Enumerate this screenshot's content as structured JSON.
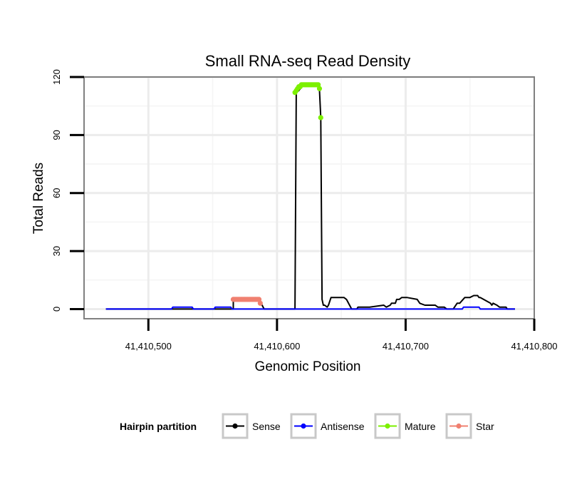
{
  "chart_data": {
    "type": "line",
    "title": "Small RNA-seq Read Density",
    "xlabel": "Genomic Position",
    "ylabel": "Total Reads",
    "xlim": [
      41410450,
      41410800
    ],
    "ylim": [
      -5,
      120
    ],
    "xticks": [
      41410500,
      41410600,
      41410700,
      41410800
    ],
    "xtick_labels": [
      "41,410,500",
      "41,410,600",
      "41,410,700",
      "41,410,800"
    ],
    "yticks": [
      0,
      30,
      60,
      90,
      120
    ],
    "ytick_labels": [
      "0",
      "30",
      "60",
      "90",
      "120"
    ],
    "grid": true,
    "legend": {
      "title": "Hairpin partition",
      "placement": "bottom",
      "entries": [
        {
          "name": "Sense",
          "color": "#000000"
        },
        {
          "name": "Antisense",
          "color": "#0000ff"
        },
        {
          "name": "Mature",
          "color": "#7cf000"
        },
        {
          "name": "Star",
          "color": "#f08070"
        }
      ]
    },
    "series": [
      {
        "name": "Sense",
        "color": "#000000",
        "marker": false,
        "x": [
          41410467,
          41410566,
          41410566,
          41410570,
          41410586,
          41410590,
          41410614,
          41410615,
          41410617,
          41410618,
          41410619,
          41410620,
          41410632,
          41410633,
          41410634,
          41410635,
          41410636,
          41410637,
          41410639,
          41410640,
          41410642,
          41410652,
          41410654,
          41410658,
          41410660,
          41410662,
          41410663,
          41410672,
          41410683,
          41410685,
          41410688,
          41410689,
          41410692,
          41410693,
          41410695,
          41410697,
          41410701,
          41410709,
          41410711,
          41410715,
          41410723,
          41410725,
          41410730,
          41410732,
          41410737,
          41410740,
          41410742,
          41410746,
          41410750,
          41410753,
          41410756,
          41410757,
          41410758,
          41410766,
          41410767,
          41410768,
          41410771,
          41410773,
          41410778,
          41410779,
          41410785
        ],
        "y": [
          0,
          0,
          5,
          5,
          5,
          0,
          0,
          112,
          113,
          114,
          115,
          116,
          116,
          114,
          99,
          5,
          2,
          2,
          1,
          2,
          6,
          6,
          5,
          0,
          0,
          0,
          1,
          1,
          2,
          1,
          2,
          3,
          3,
          5,
          5,
          6,
          6,
          5,
          3,
          2,
          2,
          1,
          1,
          0,
          0,
          3,
          3,
          6,
          6,
          7,
          7,
          6,
          6,
          3,
          2,
          3,
          2,
          1,
          1,
          0,
          0
        ]
      },
      {
        "name": "Antisense",
        "color": "#0000ff",
        "marker": false,
        "x": [
          41410467,
          41410518,
          41410519,
          41410534,
          41410535,
          41410551,
          41410552,
          41410564,
          41410565,
          41410744,
          41410745,
          41410757,
          41410758,
          41410785
        ],
        "y": [
          0,
          0,
          1,
          1,
          0,
          0,
          1,
          1,
          0,
          0,
          1,
          1,
          0,
          0
        ]
      },
      {
        "name": "Mature",
        "color": "#7cf000",
        "marker": true,
        "x": [
          41410614,
          41410615,
          41410616,
          41410617,
          41410618,
          41410619,
          41410620,
          41410621,
          41410622,
          41410623,
          41410624,
          41410625,
          41410626,
          41410627,
          41410628,
          41410629,
          41410630,
          41410631,
          41410632,
          41410633,
          41410634
        ],
        "y": [
          112,
          113,
          114,
          115,
          115,
          116,
          116,
          116,
          116,
          116,
          116,
          116,
          116,
          116,
          116,
          116,
          116,
          116,
          116,
          114,
          99
        ]
      },
      {
        "name": "Star",
        "color": "#f08070",
        "marker": true,
        "x": [
          41410566,
          41410567,
          41410568,
          41410569,
          41410570,
          41410571,
          41410572,
          41410573,
          41410574,
          41410575,
          41410576,
          41410577,
          41410578,
          41410579,
          41410580,
          41410581,
          41410582,
          41410583,
          41410584,
          41410585,
          41410586,
          41410587
        ],
        "y": [
          5,
          5,
          5,
          5,
          5,
          5,
          5,
          5,
          5,
          5,
          5,
          5,
          5,
          5,
          5,
          5,
          5,
          5,
          5,
          5,
          5,
          3
        ]
      }
    ]
  }
}
